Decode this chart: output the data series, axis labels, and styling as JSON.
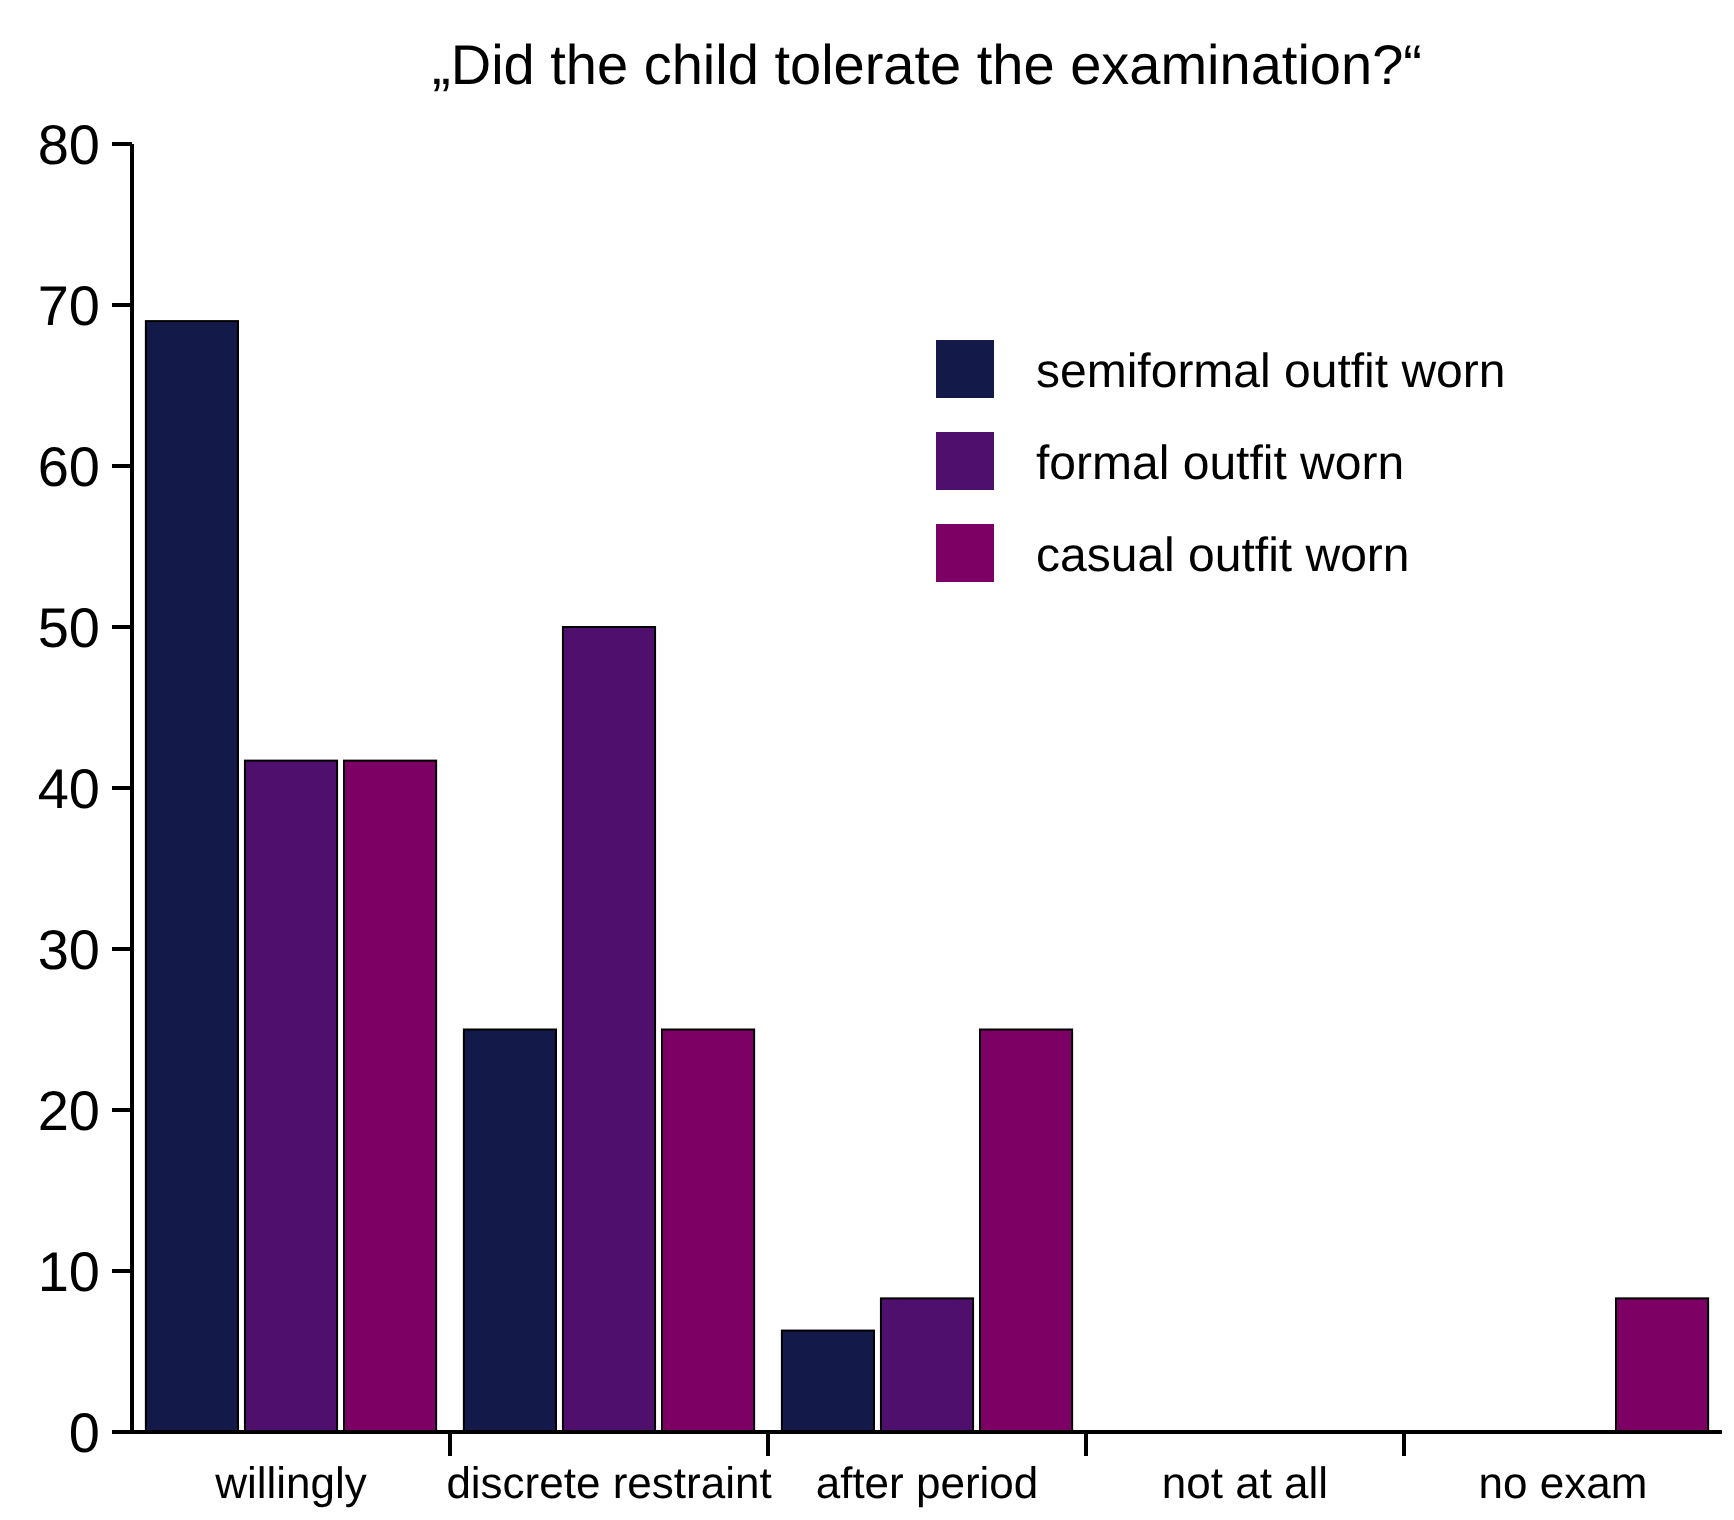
{
  "chart_data": {
    "type": "bar",
    "title": "„Did the child tolerate the examination?“",
    "categories": [
      "willingly",
      "discrete restraint",
      "after period",
      "not at all",
      "no exam"
    ],
    "series": [
      {
        "name": "semiformal outfit worn",
        "color": "#131a4a",
        "values": [
          69,
          25,
          6.3,
          0,
          0
        ]
      },
      {
        "name": "formal outfit worn",
        "color": "#4f0f6c",
        "values": [
          41.7,
          50,
          8.3,
          0,
          0
        ]
      },
      {
        "name": "casual outfit worn",
        "color": "#7d0064",
        "values": [
          41.7,
          25,
          25,
          0,
          8.3
        ]
      }
    ],
    "ylim": [
      0,
      80
    ],
    "yticks": [
      0,
      10,
      20,
      30,
      40,
      50,
      60,
      70,
      80
    ],
    "grid": false,
    "legend": "top right"
  }
}
